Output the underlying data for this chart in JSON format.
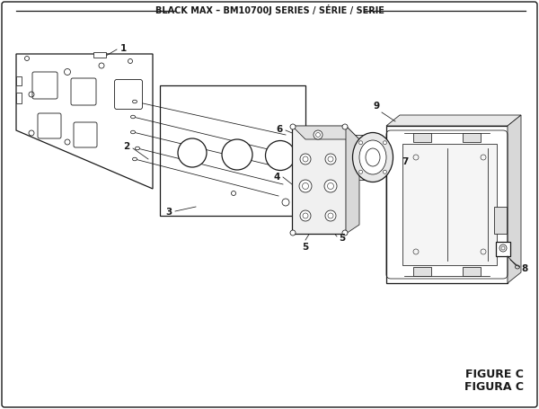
{
  "title": "BLACK MAX – BM10700J SERIES / SÉRIE / SERIE",
  "figure_label": "FIGURE C",
  "figura_label": "FIGURA C",
  "bg_color": "#ffffff",
  "line_color": "#1a1a1a",
  "gray_color": "#888888",
  "light_gray": "#cccccc"
}
